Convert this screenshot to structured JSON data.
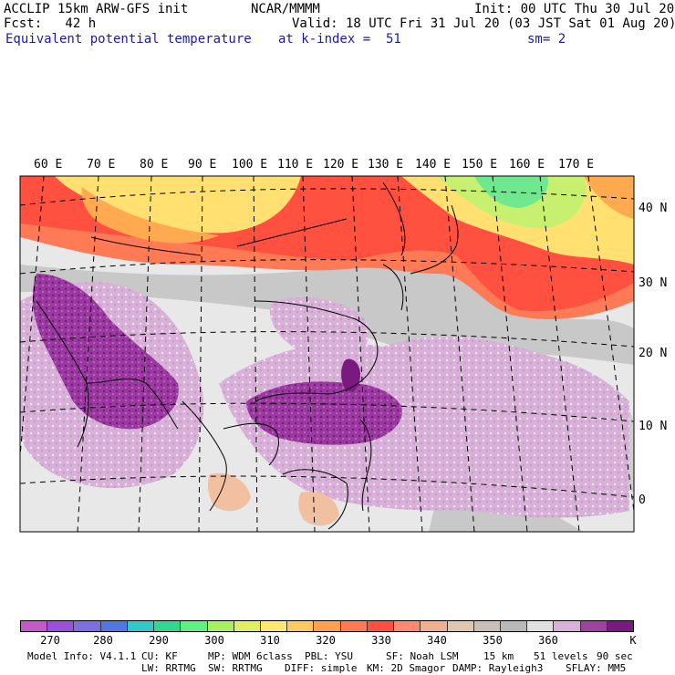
{
  "header": {
    "model": "ACCLIP 15km ARW-GFS init",
    "center": "NCAR/MMMM",
    "init": "Init: 00 UTC Thu 30 Jul 20",
    "fcst": "Fcst:   42 h",
    "valid": "Valid: 18 UTC Fri 31 Jul 20 (03 JST Sat 01 Aug 20)",
    "field": "Equivalent potential temperature",
    "level": "at k-index =  51",
    "smooth": "sm= 2"
  },
  "map": {
    "lon_labels": [
      "60 E",
      "70 E",
      "80 E",
      "90 E",
      "100 E",
      "110 E",
      "120 E",
      "130 E",
      "140 E",
      "150 E",
      "160 E",
      "170 E"
    ],
    "lat_labels": [
      "40 N",
      "30 N",
      "20 N",
      "10 N",
      "0"
    ],
    "colors": {
      "bg_gray": "#e8e8e8",
      "gray_mid": "#c8c8c8",
      "lilac": "#d8b0d8",
      "purple_mid": "#9a3aa0",
      "purple_dark": "#7a1a80",
      "orange_red": "#ff5040",
      "coral": "#ff7a55",
      "orange": "#ffaa50",
      "yellow": "#ffe070",
      "yellow_green": "#c8f070",
      "green": "#70e890",
      "tan": "#f0c0a0"
    }
  },
  "colorbar": {
    "colors": [
      "#c45ac8",
      "#9a50d8",
      "#7c70e0",
      "#5078e0",
      "#30c8c8",
      "#30d890",
      "#60ee80",
      "#a8f060",
      "#e0f060",
      "#ffe870",
      "#ffc860",
      "#ffa050",
      "#ff7a50",
      "#ff5040",
      "#ff8870",
      "#f0b090",
      "#e0c8b0",
      "#c8c0b8",
      "#b8b8b8",
      "#e0e0e0",
      "#d8b0d8",
      "#a040a0",
      "#7a1a80"
    ],
    "ticks": [
      "270",
      "280",
      "290",
      "300",
      "310",
      "320",
      "330",
      "340",
      "350",
      "360"
    ],
    "unit": "K"
  },
  "footer": {
    "line1": [
      "Model Info: V4.1.1",
      "CU: KF",
      "MP: WDM 6class",
      "PBL: YSU",
      "SF: Noah LSM",
      "15 km",
      "51 levels",
      "90 sec"
    ],
    "line2": [
      "LW: RRTMG",
      "SW: RRTMG",
      "DIFF: simple",
      "KM: 2D Smagor",
      "DAMP: Rayleigh3",
      "SFLAY: MM5"
    ]
  }
}
